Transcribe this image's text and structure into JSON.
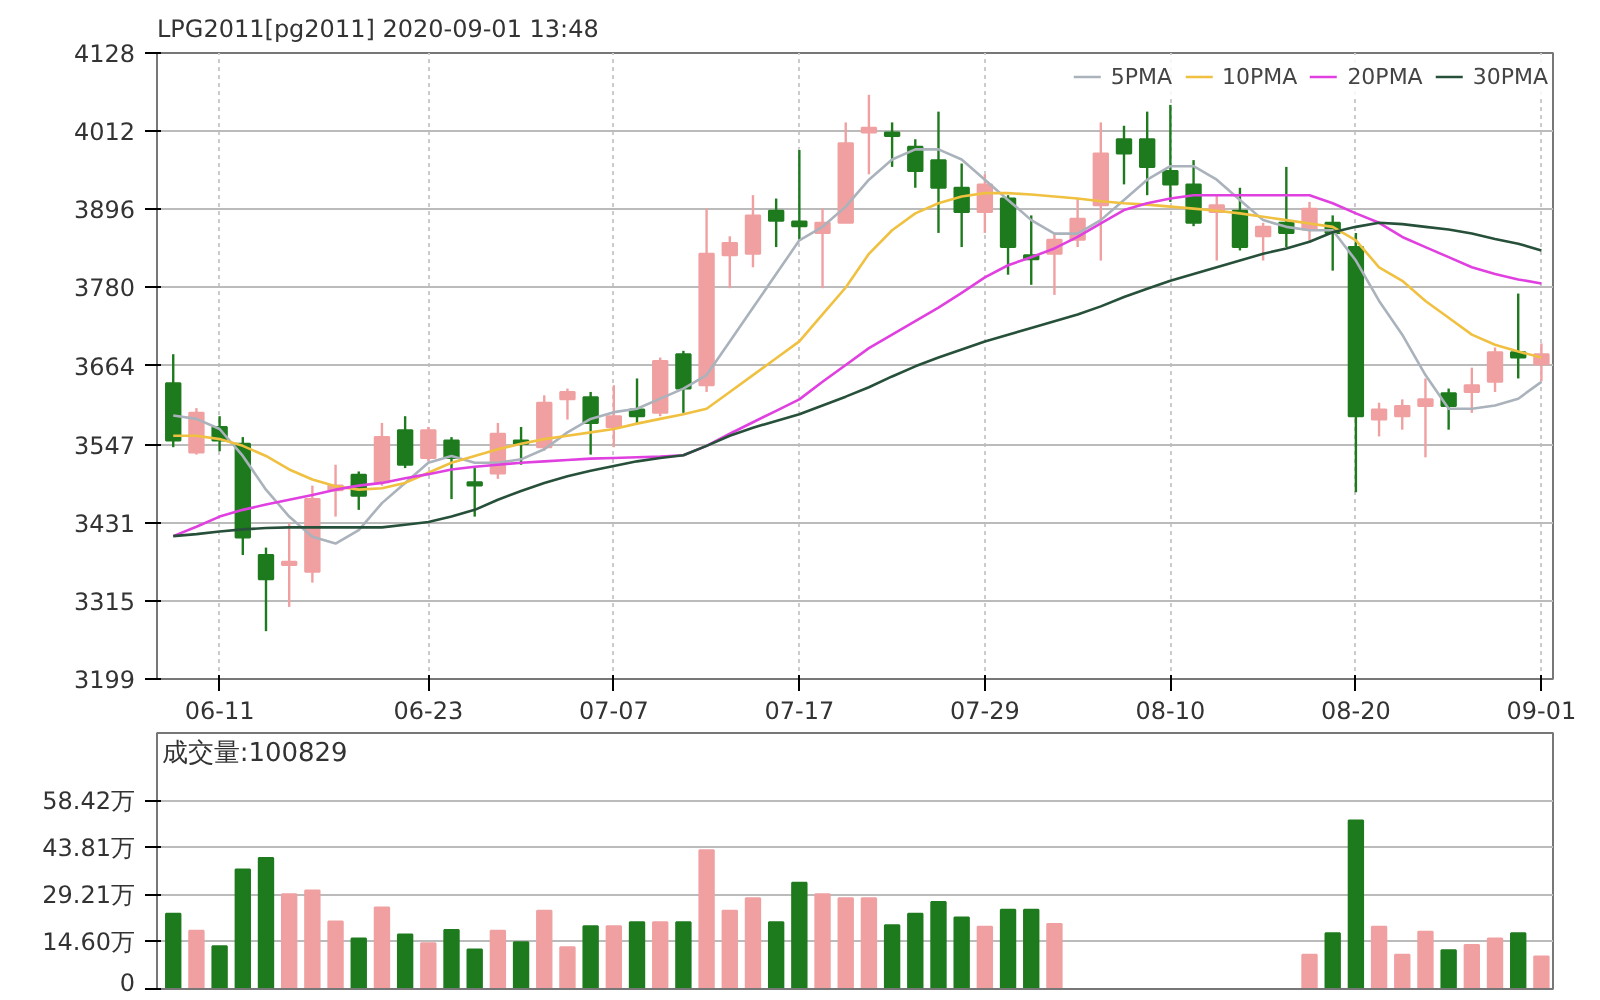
{
  "chart_data": [
    {
      "type": "candlestick",
      "title": "LPG2011[pg2011] 2020-09-01 13:48",
      "categories": [
        null,
        null,
        "06-11",
        null,
        null,
        null,
        null,
        null,
        null,
        null,
        null,
        "06-23",
        null,
        null,
        null,
        null,
        null,
        null,
        null,
        "07-07",
        null,
        null,
        null,
        null,
        null,
        null,
        null,
        "07-17",
        null,
        null,
        null,
        null,
        null,
        null,
        null,
        "07-29",
        null,
        null,
        null,
        null,
        null,
        null,
        null,
        "08-10",
        null,
        null,
        null,
        null,
        null,
        null,
        null,
        "08-20",
        null,
        null,
        null,
        null,
        null,
        null,
        null,
        "09-01"
      ],
      "ohlc": [
        [
          3638,
          3681,
          3543,
          3553
        ],
        [
          3535,
          3601,
          3532,
          3594
        ],
        [
          3573,
          3589,
          3537,
          3553
        ],
        [
          3548,
          3558,
          3383,
          3409
        ],
        [
          3383,
          3394,
          3270,
          3347
        ],
        [
          3368,
          3430,
          3306,
          3373
        ],
        [
          3358,
          3486,
          3342,
          3466
        ],
        [
          3479,
          3517,
          3440,
          3486
        ],
        [
          3502,
          3507,
          3450,
          3471
        ],
        [
          3491,
          3579,
          3486,
          3558
        ],
        [
          3568,
          3589,
          3512,
          3517
        ],
        [
          3527,
          3573,
          3522,
          3568
        ],
        [
          3553,
          3558,
          3466,
          3527
        ],
        [
          3491,
          3512,
          3440,
          3486
        ],
        [
          3504,
          3579,
          3496,
          3563
        ],
        [
          3553,
          3573,
          3517,
          3548
        ],
        [
          3543,
          3620,
          3538,
          3609
        ],
        [
          3614,
          3630,
          3584,
          3625
        ],
        [
          3617,
          3625,
          3532,
          3579
        ],
        [
          3573,
          3635,
          3543,
          3589
        ],
        [
          3599,
          3645,
          3579,
          3589
        ],
        [
          3594,
          3676,
          3589,
          3671
        ],
        [
          3681,
          3686,
          3594,
          3630
        ],
        [
          3635,
          3897,
          3625,
          3830
        ],
        [
          3828,
          3856,
          3779,
          3846
        ],
        [
          3830,
          3917,
          3810,
          3887
        ],
        [
          3894,
          3912,
          3840,
          3879
        ],
        [
          3878,
          3984,
          3851,
          3871
        ],
        [
          3861,
          3897,
          3779,
          3876
        ],
        [
          3876,
          4025,
          3876,
          3994
        ],
        [
          4010,
          4066,
          3948,
          4017
        ],
        [
          4010,
          4025,
          3959,
          4005
        ],
        [
          3989,
          4000,
          3928,
          3953
        ],
        [
          3969,
          4041,
          3861,
          3928
        ],
        [
          3928,
          3964,
          3840,
          3892
        ],
        [
          3892,
          3948,
          3861,
          3933
        ],
        [
          3912,
          3917,
          3799,
          3840
        ],
        [
          3828,
          3887,
          3784,
          3822
        ],
        [
          3830,
          3861,
          3769,
          3851
        ],
        [
          3851,
          3912,
          3840,
          3882
        ],
        [
          3902,
          4025,
          3820,
          3979
        ],
        [
          4000,
          4020,
          3933,
          3979
        ],
        [
          4000,
          4041,
          3917,
          3959
        ],
        [
          3953,
          4051,
          3907,
          3933
        ],
        [
          3933,
          3969,
          3871,
          3876
        ],
        [
          3892,
          3917,
          3820,
          3902
        ],
        [
          3894,
          3928,
          3835,
          3840
        ],
        [
          3856,
          3876,
          3820,
          3870
        ],
        [
          3876,
          3959,
          3840,
          3861
        ],
        [
          3866,
          3907,
          3846,
          3897
        ],
        [
          3876,
          3887,
          3805,
          3861
        ],
        [
          3840,
          3861,
          3476,
          3589
        ],
        [
          3584,
          3609,
          3559,
          3599
        ],
        [
          3589,
          3614,
          3569,
          3604
        ],
        [
          3604,
          3645,
          3528,
          3614
        ],
        [
          3623,
          3630,
          3569,
          3604
        ],
        [
          3625,
          3661,
          3594,
          3635
        ],
        [
          3640,
          3691,
          3625,
          3684
        ],
        [
          3684,
          3771,
          3645,
          3676
        ],
        [
          3666,
          3697,
          3641,
          3681
        ]
      ],
      "colors": [
        "#1d7a1d",
        "#f0a0a0",
        "#1d7a1d",
        "#1d7a1d",
        "#1d7a1d",
        "#f0a0a0",
        "#f0a0a0",
        "#f0a0a0",
        "#1d7a1d",
        "#f0a0a0",
        "#1d7a1d",
        "#f0a0a0",
        "#1d7a1d",
        "#1d7a1d",
        "#f0a0a0",
        "#1d7a1d",
        "#f0a0a0",
        "#f0a0a0",
        "#1d7a1d",
        "#f0a0a0",
        "#1d7a1d",
        "#f0a0a0",
        "#1d7a1d",
        "#f0a0a0",
        "#f0a0a0",
        "#f0a0a0",
        "#1d7a1d",
        "#1d7a1d",
        "#f0a0a0",
        "#f0a0a0",
        "#f0a0a0",
        "#1d7a1d",
        "#1d7a1d",
        "#1d7a1d",
        "#1d7a1d",
        "#f0a0a0",
        "#1d7a1d",
        "#1d7a1d",
        "#f0a0a0",
        "#f0a0a0",
        "#f0a0a0",
        "#1d7a1d",
        "#1d7a1d",
        "#1d7a1d",
        "#1d7a1d",
        "#f0a0a0",
        "#1d7a1d",
        "#f0a0a0",
        "#1d7a1d",
        "#f0a0a0",
        "#1d7a1d",
        "#1d7a1d",
        "#f0a0a0",
        "#f0a0a0",
        "#f0a0a0",
        "#1d7a1d",
        "#f0a0a0",
        "#f0a0a0",
        "#1d7a1d",
        "#f0a0a0"
      ],
      "series": [
        {
          "type": "line",
          "name": "5PMA",
          "color": "#aab2bc",
          "values": [
            3590,
            3585,
            3570,
            3530,
            3480,
            3440,
            3410,
            3400,
            3420,
            3460,
            3490,
            3520,
            3530,
            3520,
            3520,
            3525,
            3540,
            3565,
            3585,
            3595,
            3600,
            3615,
            3630,
            3650,
            3700,
            3750,
            3800,
            3850,
            3870,
            3900,
            3940,
            3970,
            3985,
            3985,
            3970,
            3940,
            3910,
            3880,
            3860,
            3860,
            3880,
            3910,
            3940,
            3960,
            3960,
            3940,
            3910,
            3880,
            3870,
            3865,
            3865,
            3820,
            3760,
            3710,
            3650,
            3600,
            3600,
            3605,
            3615,
            3640
          ]
        },
        {
          "type": "line",
          "name": "10PMA",
          "color": "#f0c040",
          "values": [
            3560,
            3560,
            3555,
            3545,
            3530,
            3510,
            3495,
            3485,
            3480,
            3482,
            3490,
            3505,
            3520,
            3530,
            3540,
            3548,
            3555,
            3560,
            3565,
            3570,
            3578,
            3585,
            3592,
            3600,
            3625,
            3650,
            3675,
            3700,
            3740,
            3780,
            3830,
            3865,
            3890,
            3905,
            3915,
            3920,
            3920,
            3918,
            3915,
            3912,
            3908,
            3905,
            3903,
            3900,
            3897,
            3894,
            3890,
            3885,
            3880,
            3875,
            3870,
            3850,
            3810,
            3790,
            3760,
            3735,
            3710,
            3695,
            3685,
            3676
          ]
        },
        {
          "type": "line",
          "name": "20PMA",
          "color": "#e040e0",
          "values": [
            3411,
            3425,
            3440,
            3450,
            3458,
            3465,
            3472,
            3480,
            3486,
            3490,
            3497,
            3503,
            3510,
            3514,
            3517,
            3520,
            3522,
            3524,
            3526,
            3527,
            3528,
            3529,
            3531,
            3545,
            3563,
            3580,
            3597,
            3614,
            3640,
            3665,
            3690,
            3710,
            3730,
            3750,
            3772,
            3795,
            3813,
            3825,
            3838,
            3855,
            3875,
            3895,
            3905,
            3912,
            3917,
            3917,
            3917,
            3917,
            3917,
            3917,
            3905,
            3890,
            3876,
            3855,
            3840,
            3825,
            3810,
            3800,
            3792,
            3786
          ]
        },
        {
          "type": "line",
          "name": "30PMA",
          "color": "#27503a",
          "values": [
            3411,
            3414,
            3418,
            3421,
            3423,
            3424,
            3424,
            3424,
            3424,
            3424,
            3428,
            3432,
            3440,
            3450,
            3465,
            3478,
            3490,
            3500,
            3508,
            3515,
            3522,
            3527,
            3531,
            3545,
            3560,
            3572,
            3582,
            3592,
            3605,
            3618,
            3632,
            3648,
            3663,
            3676,
            3688,
            3700,
            3710,
            3720,
            3730,
            3740,
            3752,
            3766,
            3778,
            3790,
            3800,
            3810,
            3820,
            3830,
            3838,
            3848,
            3862,
            3870,
            3876,
            3874,
            3870,
            3866,
            3860,
            3852,
            3845,
            3835
          ]
        }
      ],
      "ylim": [
        3199,
        4128
      ],
      "yticks": [
        3199,
        3315,
        3431,
        3547,
        3664,
        3780,
        3896,
        4012,
        4128
      ],
      "grid": true,
      "legend": "top right"
    },
    {
      "type": "bar",
      "annotations": [
        "成交量:100829"
      ],
      "categories": [
        null,
        null,
        null,
        null,
        null,
        null,
        null,
        null,
        null,
        null,
        null,
        null,
        null,
        null,
        null,
        null,
        null,
        null,
        null,
        null,
        null,
        null,
        null,
        null,
        null,
        null,
        null,
        null,
        null,
        null,
        null,
        null,
        null,
        null,
        null,
        null,
        null,
        null,
        null,
        null,
        null,
        null,
        null,
        null,
        null,
        null,
        null,
        null,
        null,
        null,
        null,
        null,
        null,
        null,
        null,
        null,
        null,
        null,
        null,
        null
      ],
      "values": [
        23.4,
        18.1,
        13.3,
        37.1,
        40.7,
        29.4,
        30.6,
        21.0,
        15.7,
        25.3,
        16.9,
        14.2,
        18.3,
        12.3,
        18.1,
        14.5,
        24.3,
        13.0,
        19.5,
        19.5,
        20.7,
        20.7,
        20.7,
        43.1,
        24.3,
        28.2,
        20.7,
        33.0,
        29.4,
        28.2,
        28.2,
        19.8,
        23.4,
        27.0,
        22.2,
        19.3,
        24.6,
        24.6,
        20.2,
        null,
        null,
        null,
        null,
        null,
        null,
        null,
        null,
        null,
        null,
        10.6,
        17.3,
        52.3,
        19.3,
        10.6,
        17.8,
        12.0,
        13.7,
        15.7,
        17.3,
        10.1
      ],
      "colors": [
        "#1d7a1d",
        "#f0a0a0",
        "#1d7a1d",
        "#1d7a1d",
        "#1d7a1d",
        "#f0a0a0",
        "#f0a0a0",
        "#f0a0a0",
        "#1d7a1d",
        "#f0a0a0",
        "#1d7a1d",
        "#f0a0a0",
        "#1d7a1d",
        "#1d7a1d",
        "#f0a0a0",
        "#1d7a1d",
        "#f0a0a0",
        "#f0a0a0",
        "#1d7a1d",
        "#f0a0a0",
        "#1d7a1d",
        "#f0a0a0",
        "#1d7a1d",
        "#f0a0a0",
        "#f0a0a0",
        "#f0a0a0",
        "#1d7a1d",
        "#1d7a1d",
        "#f0a0a0",
        "#f0a0a0",
        "#f0a0a0",
        "#1d7a1d",
        "#1d7a1d",
        "#1d7a1d",
        "#1d7a1d",
        "#f0a0a0",
        "#1d7a1d",
        "#1d7a1d",
        "#f0a0a0",
        null,
        null,
        null,
        null,
        null,
        null,
        null,
        null,
        null,
        null,
        "#f0a0a0",
        "#1d7a1d",
        "#1d7a1d",
        "#f0a0a0",
        "#f0a0a0",
        "#f0a0a0",
        "#1d7a1d",
        "#f0a0a0",
        "#f0a0a0",
        "#1d7a1d",
        "#f0a0a0"
      ],
      "ylim": [
        0,
        79.5
      ],
      "yticks": [
        0,
        {
          "value": 14.6,
          "label": "14.60万"
        },
        {
          "value": 29.21,
          "label": "29.21万"
        },
        {
          "value": 43.81,
          "label": "43.81万"
        },
        {
          "value": 58.42,
          "label": "58.42万"
        }
      ],
      "grid": "y",
      "tick_labels": "y"
    }
  ]
}
